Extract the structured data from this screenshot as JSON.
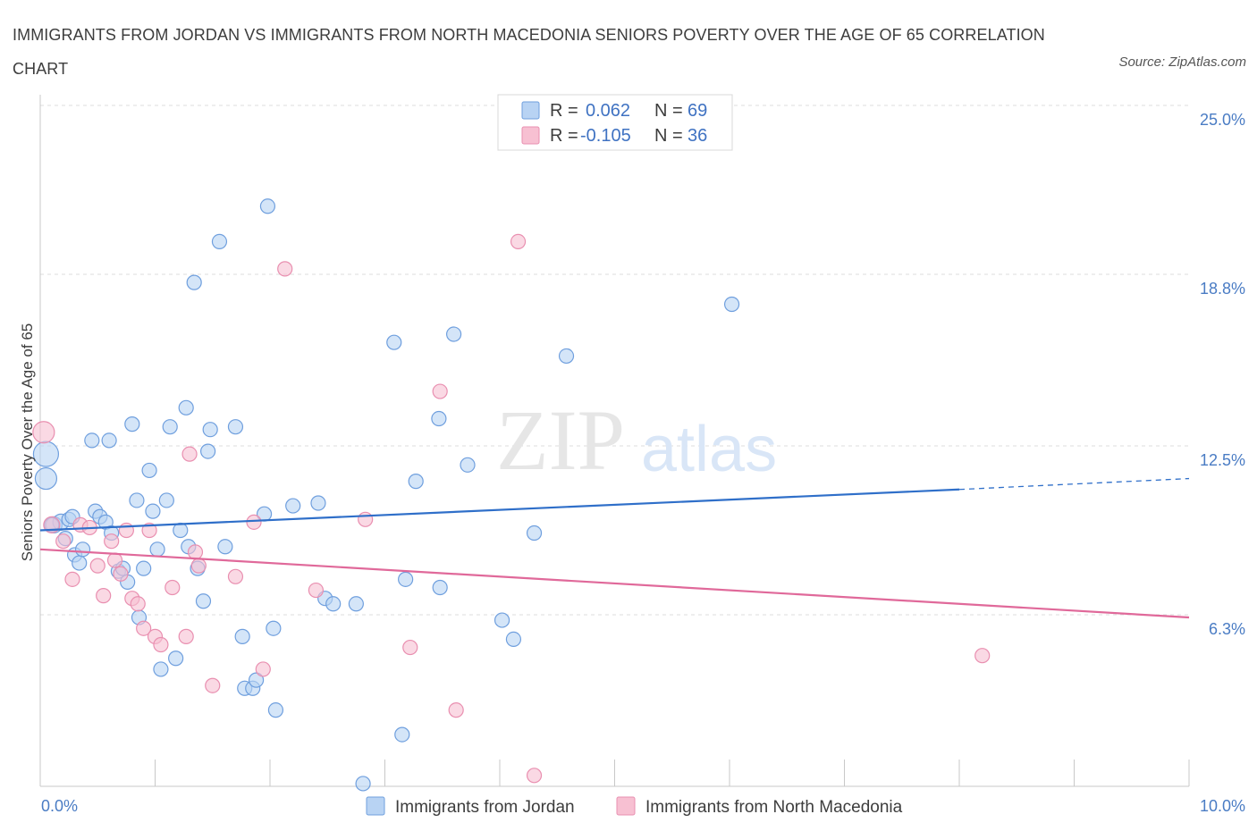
{
  "title": "IMMIGRANTS FROM JORDAN VS IMMIGRANTS FROM NORTH MACEDONIA SENIORS POVERTY OVER THE AGE OF 65 CORRELATION CHART",
  "source": "Source: ZipAtlas.com",
  "watermark": {
    "zip": "ZIP",
    "atlas": "atlas"
  },
  "colors": {
    "blue_fill": "#b8d3f3",
    "blue_stroke": "#6f9fde",
    "blue_line": "#2f6fc9",
    "pink_fill": "#f7c0d2",
    "pink_stroke": "#e98fb0",
    "pink_line": "#e0699a",
    "tick_text": "#4a7cc4",
    "grid": "#dcdcdc"
  },
  "legend": {
    "rows": [
      {
        "r_label": "R =",
        "r_value": "0.062",
        "n_label": "N =",
        "n_value": "69"
      },
      {
        "r_label": "R =",
        "r_value": "-0.105",
        "n_label": "N =",
        "n_value": "36"
      }
    ]
  },
  "chart_data": {
    "type": "scatter",
    "xlabel": "",
    "ylabel": "Seniors Poverty Over the Age of 65",
    "xlim": [
      0,
      10
    ],
    "ylim": [
      0,
      25
    ],
    "x_tick_labels": [
      "0.0%",
      "10.0%"
    ],
    "y_ticks": [
      6.3,
      12.5,
      18.8,
      25.0
    ],
    "y_tick_labels": [
      "6.3%",
      "12.5%",
      "18.8%",
      "25.0%"
    ],
    "grid": true,
    "legend_position": "top-center",
    "series": [
      {
        "name": "Immigrants from Jordan",
        "color": "#b8d3f3",
        "trend": {
          "x": [
            0,
            8.0
          ],
          "y": [
            9.4,
            10.9
          ],
          "dashed_to": [
            10.0,
            11.3
          ]
        },
        "points": [
          [
            0.05,
            11.3,
            12
          ],
          [
            0.05,
            12.2,
            14
          ],
          [
            0.12,
            9.6,
            9
          ],
          [
            0.18,
            9.7,
            9
          ],
          [
            0.22,
            9.1,
            8
          ],
          [
            0.25,
            9.8,
            8
          ],
          [
            0.28,
            9.9,
            8
          ],
          [
            0.3,
            8.5,
            8
          ],
          [
            0.34,
            8.2,
            8
          ],
          [
            0.37,
            8.7,
            8
          ],
          [
            0.45,
            12.7,
            8
          ],
          [
            0.48,
            10.1,
            8
          ],
          [
            0.52,
            9.9,
            8
          ],
          [
            0.57,
            9.7,
            8
          ],
          [
            0.6,
            12.7,
            8
          ],
          [
            0.62,
            9.3,
            8
          ],
          [
            0.68,
            7.9,
            8
          ],
          [
            0.72,
            8.0,
            8
          ],
          [
            0.76,
            7.5,
            8
          ],
          [
            0.8,
            13.3,
            8
          ],
          [
            0.84,
            10.5,
            8
          ],
          [
            0.86,
            6.2,
            8
          ],
          [
            0.9,
            8.0,
            8
          ],
          [
            0.95,
            11.6,
            8
          ],
          [
            0.98,
            10.1,
            8
          ],
          [
            1.02,
            8.7,
            8
          ],
          [
            1.05,
            4.3,
            8
          ],
          [
            1.1,
            10.5,
            8
          ],
          [
            1.13,
            13.2,
            8
          ],
          [
            1.18,
            4.7,
            8
          ],
          [
            1.22,
            9.4,
            8
          ],
          [
            1.27,
            13.9,
            8
          ],
          [
            1.29,
            8.8,
            8
          ],
          [
            1.34,
            18.5,
            8
          ],
          [
            1.37,
            8.0,
            8
          ],
          [
            1.42,
            6.8,
            8
          ],
          [
            1.46,
            12.3,
            8
          ],
          [
            1.48,
            13.1,
            8
          ],
          [
            1.56,
            20.0,
            8
          ],
          [
            1.61,
            8.8,
            8
          ],
          [
            1.7,
            13.2,
            8
          ],
          [
            1.76,
            5.5,
            8
          ],
          [
            1.78,
            3.6,
            8
          ],
          [
            1.85,
            3.6,
            8
          ],
          [
            1.88,
            3.9,
            8
          ],
          [
            1.95,
            10.0,
            8
          ],
          [
            1.98,
            21.3,
            8
          ],
          [
            2.03,
            5.8,
            8
          ],
          [
            2.05,
            2.8,
            8
          ],
          [
            2.2,
            10.3,
            8
          ],
          [
            2.42,
            10.4,
            8
          ],
          [
            2.48,
            6.9,
            8
          ],
          [
            2.55,
            6.7,
            8
          ],
          [
            2.75,
            6.7,
            8
          ],
          [
            2.81,
            0.1,
            8
          ],
          [
            3.08,
            16.3,
            8
          ],
          [
            3.15,
            1.9,
            8
          ],
          [
            3.18,
            7.6,
            8
          ],
          [
            3.27,
            11.2,
            8
          ],
          [
            3.47,
            13.5,
            8
          ],
          [
            3.48,
            7.3,
            8
          ],
          [
            3.6,
            16.6,
            8
          ],
          [
            3.72,
            11.8,
            8
          ],
          [
            4.02,
            6.1,
            8
          ],
          [
            4.12,
            5.4,
            8
          ],
          [
            4.3,
            9.3,
            8
          ],
          [
            4.58,
            15.8,
            8
          ],
          [
            6.02,
            17.7,
            8
          ],
          [
            0.1,
            9.6,
            8
          ]
        ]
      },
      {
        "name": "Immigrants from North Macedonia",
        "color": "#f7c0d2",
        "trend": {
          "x": [
            0,
            10.0
          ],
          "y": [
            8.7,
            6.2
          ]
        },
        "points": [
          [
            0.03,
            13.0,
            12
          ],
          [
            0.1,
            9.6,
            9
          ],
          [
            0.2,
            9.0,
            8
          ],
          [
            0.28,
            7.6,
            8
          ],
          [
            0.35,
            9.6,
            8
          ],
          [
            0.43,
            9.5,
            8
          ],
          [
            0.5,
            8.1,
            8
          ],
          [
            0.55,
            7.0,
            8
          ],
          [
            0.62,
            9.0,
            8
          ],
          [
            0.65,
            8.3,
            8
          ],
          [
            0.7,
            7.8,
            8
          ],
          [
            0.75,
            9.4,
            8
          ],
          [
            0.8,
            6.9,
            8
          ],
          [
            0.85,
            6.7,
            8
          ],
          [
            0.9,
            5.8,
            8
          ],
          [
            0.95,
            9.4,
            8
          ],
          [
            1.0,
            5.5,
            8
          ],
          [
            1.05,
            5.2,
            8
          ],
          [
            1.15,
            7.3,
            8
          ],
          [
            1.27,
            5.5,
            8
          ],
          [
            1.3,
            12.2,
            8
          ],
          [
            1.35,
            8.6,
            8
          ],
          [
            1.38,
            8.1,
            8
          ],
          [
            1.5,
            3.7,
            8
          ],
          [
            1.7,
            7.7,
            8
          ],
          [
            1.86,
            9.7,
            8
          ],
          [
            1.94,
            4.3,
            8
          ],
          [
            2.13,
            19.0,
            8
          ],
          [
            2.4,
            7.2,
            8
          ],
          [
            2.83,
            9.8,
            8
          ],
          [
            3.22,
            5.1,
            8
          ],
          [
            3.48,
            14.5,
            8
          ],
          [
            3.62,
            2.8,
            8
          ],
          [
            4.16,
            20.0,
            8
          ],
          [
            4.3,
            0.4,
            8
          ],
          [
            8.2,
            4.8,
            8
          ]
        ]
      }
    ]
  }
}
